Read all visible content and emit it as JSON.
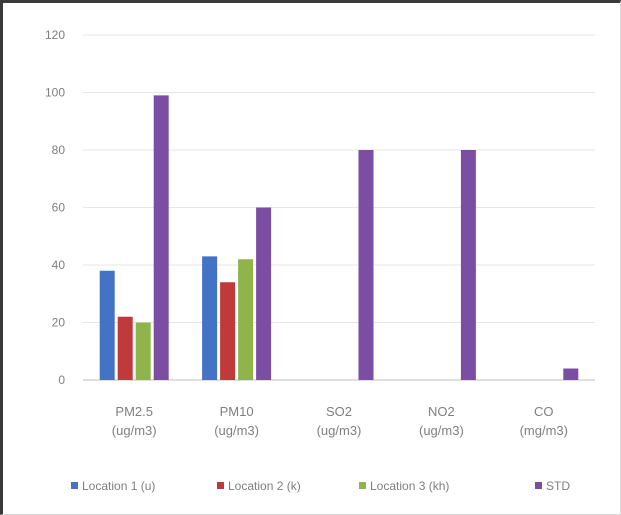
{
  "chart_data": {
    "type": "bar",
    "title": "",
    "xlabel": "",
    "ylabel": "",
    "ylim": [
      0,
      120
    ],
    "yticks": [
      0,
      20,
      40,
      60,
      80,
      100,
      120
    ],
    "grid": true,
    "legend_position": "bottom",
    "categories": [
      [
        "PM2.5",
        "(ug/m3)"
      ],
      [
        "PM10",
        "(ug/m3)"
      ],
      [
        "SO2",
        "(ug/m3)"
      ],
      [
        "NO2",
        "(ug/m3)"
      ],
      [
        "CO",
        "(mg/m3)"
      ]
    ],
    "series": [
      {
        "name": "Location 1 (u)",
        "color": "#4472c4",
        "values": [
          38,
          43,
          null,
          null,
          null
        ]
      },
      {
        "name": "Location 2 (k)",
        "color": "#c0393b",
        "values": [
          22,
          34,
          null,
          null,
          null
        ]
      },
      {
        "name": "Location 3 (kh)",
        "color": "#8fb44a",
        "values": [
          20,
          42,
          null,
          null,
          null
        ]
      },
      {
        "name": "STD",
        "color": "#7b4ea3",
        "values": [
          99,
          60,
          80,
          80,
          4
        ]
      }
    ]
  }
}
